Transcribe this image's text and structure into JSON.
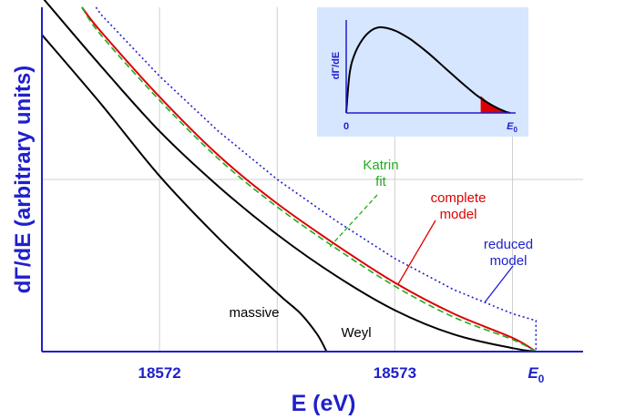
{
  "chart_data": {
    "type": "line",
    "xlabel": "E (eV)",
    "ylabel": "dΓ/dE (arbitrary units)",
    "x_ticks": [
      {
        "value": 18572,
        "label": "18572"
      },
      {
        "value": 18573,
        "label": "18573"
      },
      {
        "value": 18573.6,
        "label_main": "E",
        "label_sub": "0"
      }
    ],
    "xlim": [
      18571.5,
      18573.8
    ],
    "ylim": [
      0,
      1
    ],
    "grid": true,
    "series": [
      {
        "name": "massive",
        "color": "#000000",
        "style": "solid",
        "x": [
          18571.5,
          18571.75,
          18572,
          18572.25,
          18572.5,
          18572.6,
          18572.67,
          18572.71
        ],
        "y": [
          0.92,
          0.72,
          0.51,
          0.33,
          0.17,
          0.11,
          0.05,
          0.0
        ]
      },
      {
        "name": "Weyl",
        "color": "#000000",
        "style": "solid",
        "x": [
          18571.5,
          18571.75,
          18572,
          18572.25,
          18572.5,
          18572.75,
          18573,
          18573.25,
          18573.5,
          18573.6
        ],
        "y": [
          1.03,
          0.83,
          0.64,
          0.48,
          0.34,
          0.22,
          0.12,
          0.05,
          0.01,
          0.0
        ]
      },
      {
        "name": "complete model",
        "color": "#dd0000",
        "style": "solid",
        "x": [
          18571.67,
          18571.75,
          18572,
          18572.25,
          18572.5,
          18572.75,
          18573,
          18573.25,
          18573.5,
          18573.6
        ],
        "y": [
          1.0,
          0.93,
          0.74,
          0.57,
          0.43,
          0.31,
          0.2,
          0.11,
          0.04,
          0.0
        ]
      },
      {
        "name": "Katrin fit",
        "color": "#22aa22",
        "style": "dashed",
        "x": [
          18571.67,
          18571.75,
          18572,
          18572.25,
          18572.5,
          18572.75,
          18573,
          18573.25,
          18573.5,
          18573.6
        ],
        "y": [
          1.0,
          0.92,
          0.73,
          0.56,
          0.42,
          0.3,
          0.19,
          0.1,
          0.035,
          0.0
        ]
      },
      {
        "name": "reduced model",
        "color": "#1f1fcc",
        "style": "dotted",
        "x": [
          18571.73,
          18571.75,
          18572,
          18572.25,
          18572.5,
          18572.75,
          18573,
          18573.25,
          18573.5,
          18573.6,
          18573.6
        ],
        "y": [
          1.0,
          0.98,
          0.8,
          0.64,
          0.5,
          0.38,
          0.27,
          0.18,
          0.11,
          0.09,
          0.0
        ]
      }
    ],
    "annotations": [
      {
        "text": "massive",
        "color": "#000000"
      },
      {
        "text": "Weyl",
        "color": "#000000"
      },
      {
        "text_lines": [
          "complete",
          "model"
        ],
        "color": "#dd0000"
      },
      {
        "text_lines": [
          "Katrin",
          "fit"
        ],
        "color": "#22aa22"
      },
      {
        "text_lines": [
          "reduced",
          "model"
        ],
        "color": "#1f1fcc"
      }
    ],
    "inset": {
      "type": "line",
      "background": "#d6e6ff",
      "ylabel": "dΓ/dE",
      "x_start_label": "0",
      "x_end_label_main": "E",
      "x_end_label_sub": "0",
      "curve": {
        "color": "#000000",
        "x": [
          0,
          0.02,
          0.05,
          0.1,
          0.15,
          0.2,
          0.25,
          0.3,
          0.35,
          0.4,
          0.5,
          0.6,
          0.7,
          0.8,
          0.88,
          0.94,
          0.98,
          1.0
        ],
        "y": [
          0,
          0.45,
          0.68,
          0.86,
          0.96,
          1.0,
          0.99,
          0.96,
          0.91,
          0.85,
          0.7,
          0.53,
          0.36,
          0.2,
          0.1,
          0.04,
          0.01,
          0.0
        ]
      },
      "highlight_start": 0.82,
      "highlight_color": "#dd0000"
    }
  }
}
